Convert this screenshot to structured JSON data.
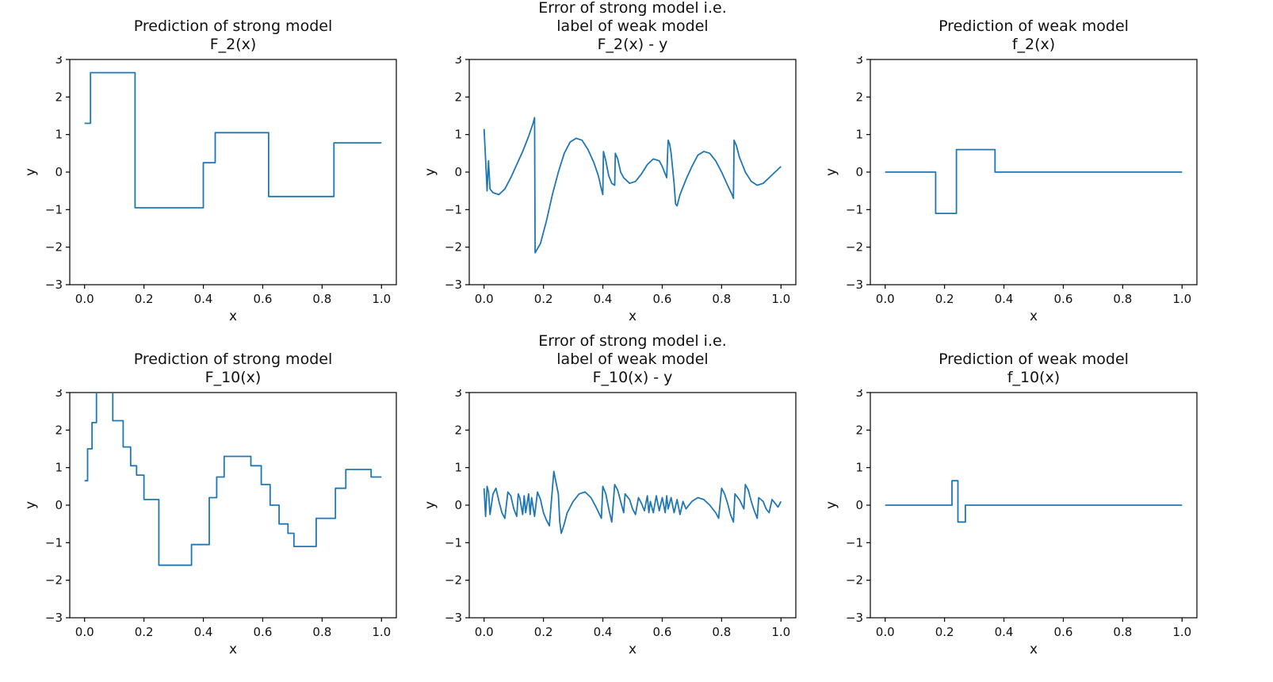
{
  "figure": {
    "background": "#ffffff",
    "line_color": "#1f77b4",
    "axis_color": "#000000",
    "text_color": "#111111"
  },
  "axes": {
    "xlim": [
      -0.05,
      1.05
    ],
    "ylim": [
      -3,
      3
    ],
    "xticks": [
      0.0,
      0.2,
      0.4,
      0.6,
      0.8,
      1.0
    ],
    "xtick_labels": [
      "0.0",
      "0.2",
      "0.4",
      "0.6",
      "0.8",
      "1.0"
    ],
    "yticks": [
      -3,
      -2,
      -1,
      0,
      1,
      2,
      3
    ],
    "ytick_labels": [
      "−3",
      "−2",
      "−1",
      "0",
      "1",
      "2",
      "3"
    ],
    "grid": false,
    "legend": "none"
  },
  "chart_data": [
    {
      "type": "line",
      "title": "Prediction of strong model\nF_2(x)",
      "xlabel": "x",
      "ylabel": "y",
      "style": "step",
      "points": [
        [
          0,
          1.3
        ],
        [
          0.02,
          1.3
        ],
        [
          0.02,
          2.65
        ],
        [
          0.17,
          2.65
        ],
        [
          0.17,
          -0.95
        ],
        [
          0.4,
          -0.95
        ],
        [
          0.4,
          0.25
        ],
        [
          0.44,
          0.25
        ],
        [
          0.44,
          1.05
        ],
        [
          0.62,
          1.05
        ],
        [
          0.62,
          -0.65
        ],
        [
          0.84,
          -0.65
        ],
        [
          0.84,
          0.78
        ],
        [
          1.0,
          0.78
        ]
      ]
    },
    {
      "type": "line",
      "title": "Error of strong model i.e.\nlabel of weak model\nF_2(x) - y",
      "xlabel": "x",
      "ylabel": "y",
      "style": "smooth",
      "points": [
        [
          0,
          1.15
        ],
        [
          0.005,
          0.35
        ],
        [
          0.01,
          -0.5
        ],
        [
          0.015,
          0.3
        ],
        [
          0.02,
          -0.45
        ],
        [
          0.03,
          -0.55
        ],
        [
          0.05,
          -0.6
        ],
        [
          0.07,
          -0.45
        ],
        [
          0.09,
          -0.15
        ],
        [
          0.11,
          0.2
        ],
        [
          0.13,
          0.55
        ],
        [
          0.15,
          0.95
        ],
        [
          0.165,
          1.3
        ],
        [
          0.17,
          1.45
        ],
        [
          0.172,
          -2.15
        ],
        [
          0.19,
          -1.9
        ],
        [
          0.21,
          -1.3
        ],
        [
          0.23,
          -0.6
        ],
        [
          0.25,
          0.0
        ],
        [
          0.27,
          0.5
        ],
        [
          0.29,
          0.8
        ],
        [
          0.31,
          0.9
        ],
        [
          0.33,
          0.85
        ],
        [
          0.35,
          0.6
        ],
        [
          0.37,
          0.25
        ],
        [
          0.385,
          -0.1
        ],
        [
          0.395,
          -0.45
        ],
        [
          0.4,
          -0.6
        ],
        [
          0.402,
          0.55
        ],
        [
          0.41,
          0.3
        ],
        [
          0.42,
          -0.1
        ],
        [
          0.43,
          -0.3
        ],
        [
          0.44,
          -0.35
        ],
        [
          0.442,
          0.5
        ],
        [
          0.45,
          0.35
        ],
        [
          0.46,
          0.0
        ],
        [
          0.47,
          -0.15
        ],
        [
          0.49,
          -0.3
        ],
        [
          0.51,
          -0.25
        ],
        [
          0.53,
          -0.05
        ],
        [
          0.55,
          0.2
        ],
        [
          0.57,
          0.35
        ],
        [
          0.59,
          0.3
        ],
        [
          0.6,
          0.15
        ],
        [
          0.61,
          -0.05
        ],
        [
          0.615,
          -0.15
        ],
        [
          0.62,
          0.85
        ],
        [
          0.625,
          0.75
        ],
        [
          0.63,
          0.5
        ],
        [
          0.64,
          -0.3
        ],
        [
          0.645,
          -0.85
        ],
        [
          0.65,
          -0.9
        ],
        [
          0.66,
          -0.6
        ],
        [
          0.68,
          -0.2
        ],
        [
          0.7,
          0.15
        ],
        [
          0.72,
          0.45
        ],
        [
          0.74,
          0.55
        ],
        [
          0.76,
          0.5
        ],
        [
          0.78,
          0.3
        ],
        [
          0.8,
          0.0
        ],
        [
          0.82,
          -0.35
        ],
        [
          0.835,
          -0.6
        ],
        [
          0.84,
          -0.7
        ],
        [
          0.842,
          0.85
        ],
        [
          0.85,
          0.7
        ],
        [
          0.86,
          0.4
        ],
        [
          0.88,
          0.0
        ],
        [
          0.9,
          -0.25
        ],
        [
          0.92,
          -0.35
        ],
        [
          0.94,
          -0.3
        ],
        [
          0.96,
          -0.15
        ],
        [
          0.98,
          0.0
        ],
        [
          1.0,
          0.15
        ]
      ]
    },
    {
      "type": "line",
      "title": "Prediction of weak model\nf_2(x)",
      "xlabel": "x",
      "ylabel": "y",
      "style": "step",
      "points": [
        [
          0,
          0
        ],
        [
          0.17,
          0
        ],
        [
          0.17,
          -1.1
        ],
        [
          0.24,
          -1.1
        ],
        [
          0.24,
          0.6
        ],
        [
          0.37,
          0.6
        ],
        [
          0.37,
          0.0
        ],
        [
          1.0,
          0.0
        ]
      ]
    },
    {
      "type": "line",
      "title": "Prediction of strong model\nF_10(x)",
      "xlabel": "x",
      "ylabel": "y",
      "style": "step",
      "points": [
        [
          0,
          0.65
        ],
        [
          0.01,
          0.65
        ],
        [
          0.01,
          1.5
        ],
        [
          0.025,
          1.5
        ],
        [
          0.025,
          2.2
        ],
        [
          0.04,
          2.2
        ],
        [
          0.04,
          3.15
        ],
        [
          0.095,
          3.15
        ],
        [
          0.095,
          2.25
        ],
        [
          0.13,
          2.25
        ],
        [
          0.13,
          1.55
        ],
        [
          0.155,
          1.55
        ],
        [
          0.155,
          1.05
        ],
        [
          0.175,
          1.05
        ],
        [
          0.175,
          0.8
        ],
        [
          0.2,
          0.8
        ],
        [
          0.2,
          0.15
        ],
        [
          0.25,
          0.15
        ],
        [
          0.25,
          -1.6
        ],
        [
          0.36,
          -1.6
        ],
        [
          0.36,
          -1.05
        ],
        [
          0.42,
          -1.05
        ],
        [
          0.42,
          0.2
        ],
        [
          0.445,
          0.2
        ],
        [
          0.445,
          0.75
        ],
        [
          0.47,
          0.75
        ],
        [
          0.47,
          1.3
        ],
        [
          0.56,
          1.3
        ],
        [
          0.56,
          1.05
        ],
        [
          0.595,
          1.05
        ],
        [
          0.595,
          0.55
        ],
        [
          0.625,
          0.55
        ],
        [
          0.625,
          0.0
        ],
        [
          0.655,
          0.0
        ],
        [
          0.655,
          -0.5
        ],
        [
          0.685,
          -0.5
        ],
        [
          0.685,
          -0.75
        ],
        [
          0.705,
          -0.75
        ],
        [
          0.705,
          -1.1
        ],
        [
          0.78,
          -1.1
        ],
        [
          0.78,
          -0.35
        ],
        [
          0.845,
          -0.35
        ],
        [
          0.845,
          0.45
        ],
        [
          0.88,
          0.45
        ],
        [
          0.88,
          0.95
        ],
        [
          0.965,
          0.95
        ],
        [
          0.965,
          0.75
        ],
        [
          1.0,
          0.75
        ]
      ]
    },
    {
      "type": "line",
      "title": "Error of strong model i.e.\nlabel of weak model\nF_10(x) - y",
      "xlabel": "x",
      "ylabel": "y",
      "style": "smooth",
      "points": [
        [
          0,
          0.45
        ],
        [
          0.005,
          -0.3
        ],
        [
          0.01,
          0.5
        ],
        [
          0.015,
          0.35
        ],
        [
          0.02,
          -0.25
        ],
        [
          0.03,
          0.3
        ],
        [
          0.04,
          0.45
        ],
        [
          0.05,
          0.1
        ],
        [
          0.06,
          -0.2
        ],
        [
          0.07,
          -0.35
        ],
        [
          0.08,
          0.35
        ],
        [
          0.09,
          0.25
        ],
        [
          0.1,
          -0.1
        ],
        [
          0.11,
          -0.3
        ],
        [
          0.115,
          0.3
        ],
        [
          0.12,
          0.2
        ],
        [
          0.13,
          -0.25
        ],
        [
          0.135,
          0.25
        ],
        [
          0.14,
          -0.2
        ],
        [
          0.15,
          0.3
        ],
        [
          0.155,
          -0.25
        ],
        [
          0.16,
          0.2
        ],
        [
          0.17,
          -0.3
        ],
        [
          0.18,
          0.35
        ],
        [
          0.19,
          0.15
        ],
        [
          0.2,
          -0.2
        ],
        [
          0.21,
          -0.4
        ],
        [
          0.22,
          -0.55
        ],
        [
          0.235,
          0.9
        ],
        [
          0.24,
          0.7
        ],
        [
          0.25,
          0.3
        ],
        [
          0.255,
          -0.45
        ],
        [
          0.26,
          -0.75
        ],
        [
          0.27,
          -0.5
        ],
        [
          0.28,
          -0.2
        ],
        [
          0.3,
          0.1
        ],
        [
          0.32,
          0.3
        ],
        [
          0.34,
          0.35
        ],
        [
          0.36,
          0.2
        ],
        [
          0.38,
          -0.1
        ],
        [
          0.395,
          -0.35
        ],
        [
          0.4,
          0.5
        ],
        [
          0.41,
          0.3
        ],
        [
          0.42,
          -0.1
        ],
        [
          0.43,
          -0.45
        ],
        [
          0.44,
          0.55
        ],
        [
          0.45,
          0.4
        ],
        [
          0.46,
          0.1
        ],
        [
          0.47,
          -0.2
        ],
        [
          0.475,
          0.3
        ],
        [
          0.49,
          0.15
        ],
        [
          0.5,
          -0.1
        ],
        [
          0.51,
          -0.25
        ],
        [
          0.52,
          0.2
        ],
        [
          0.53,
          0.05
        ],
        [
          0.54,
          -0.15
        ],
        [
          0.55,
          0.25
        ],
        [
          0.555,
          -0.2
        ],
        [
          0.56,
          0.1
        ],
        [
          0.57,
          -0.2
        ],
        [
          0.58,
          0.25
        ],
        [
          0.59,
          -0.15
        ],
        [
          0.6,
          0.2
        ],
        [
          0.61,
          -0.2
        ],
        [
          0.615,
          0.25
        ],
        [
          0.62,
          -0.1
        ],
        [
          0.63,
          0.2
        ],
        [
          0.64,
          -0.2
        ],
        [
          0.65,
          0.15
        ],
        [
          0.66,
          -0.25
        ],
        [
          0.67,
          0.1
        ],
        [
          0.68,
          -0.1
        ],
        [
          0.7,
          0.1
        ],
        [
          0.72,
          0.2
        ],
        [
          0.74,
          0.15
        ],
        [
          0.76,
          0.0
        ],
        [
          0.78,
          -0.2
        ],
        [
          0.79,
          -0.35
        ],
        [
          0.8,
          0.45
        ],
        [
          0.81,
          0.3
        ],
        [
          0.82,
          0.05
        ],
        [
          0.83,
          -0.25
        ],
        [
          0.84,
          -0.45
        ],
        [
          0.845,
          0.3
        ],
        [
          0.86,
          0.15
        ],
        [
          0.875,
          -0.1
        ],
        [
          0.88,
          0.55
        ],
        [
          0.89,
          0.4
        ],
        [
          0.9,
          0.1
        ],
        [
          0.91,
          -0.15
        ],
        [
          0.92,
          -0.35
        ],
        [
          0.925,
          0.2
        ],
        [
          0.94,
          0.1
        ],
        [
          0.95,
          -0.1
        ],
        [
          0.96,
          -0.2
        ],
        [
          0.97,
          0.15
        ],
        [
          0.98,
          0.05
        ],
        [
          0.99,
          -0.05
        ],
        [
          1.0,
          0.1
        ]
      ]
    },
    {
      "type": "line",
      "title": "Prediction of weak model\nf_10(x)",
      "xlabel": "x",
      "ylabel": "y",
      "style": "step",
      "points": [
        [
          0,
          0
        ],
        [
          0.225,
          0
        ],
        [
          0.225,
          0.65
        ],
        [
          0.245,
          0.65
        ],
        [
          0.245,
          -0.45
        ],
        [
          0.27,
          -0.45
        ],
        [
          0.27,
          0
        ],
        [
          1.0,
          0
        ]
      ]
    }
  ]
}
